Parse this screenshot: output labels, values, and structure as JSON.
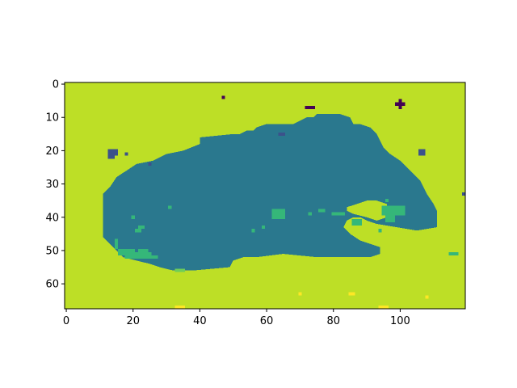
{
  "chart_data": {
    "type": "heatmap",
    "title": "",
    "xlabel": "",
    "ylabel": "",
    "grid": false,
    "legend": "none",
    "image_size": {
      "cols": 120,
      "rows": 68
    },
    "xlim": [
      -0.5,
      119.5
    ],
    "ylim": [
      67.5,
      -0.5
    ],
    "xticks": [
      0,
      20,
      40,
      60,
      80,
      100
    ],
    "yticks": [
      0,
      10,
      20,
      30,
      40,
      50,
      60
    ],
    "colormap": "viridis",
    "colors": {
      "background": "#bddf26",
      "region": "#2a788e",
      "speck_green": "#35b779",
      "speck_blue": "#3b528b",
      "speck_dark": "#440154",
      "speck_yellow": "#fde725",
      "speck_light": "#6ece58"
    },
    "background_value": "#bddf26",
    "region_outline": [
      [
        11,
        33
      ],
      [
        13,
        31
      ],
      [
        15,
        28
      ],
      [
        18,
        26
      ],
      [
        21,
        24
      ],
      [
        26,
        23
      ],
      [
        30,
        21
      ],
      [
        35,
        20
      ],
      [
        40,
        18
      ],
      [
        40,
        16
      ],
      [
        50,
        15
      ],
      [
        52,
        15
      ],
      [
        54,
        14
      ],
      [
        56,
        14
      ],
      [
        57,
        13
      ],
      [
        60,
        12
      ],
      [
        63,
        12
      ],
      [
        68,
        12
      ],
      [
        70,
        11
      ],
      [
        72,
        10
      ],
      [
        74,
        10
      ],
      [
        75,
        9
      ],
      [
        80,
        9
      ],
      [
        82,
        9
      ],
      [
        85,
        10
      ],
      [
        86,
        12
      ],
      [
        88,
        12
      ],
      [
        91,
        13
      ],
      [
        93,
        15
      ],
      [
        94,
        17
      ],
      [
        95,
        19
      ],
      [
        97,
        21
      ],
      [
        100,
        23
      ],
      [
        102,
        25
      ],
      [
        104,
        27
      ],
      [
        106,
        29
      ],
      [
        107,
        31
      ],
      [
        108,
        33
      ],
      [
        110,
        36
      ],
      [
        111,
        38
      ],
      [
        111,
        43
      ],
      [
        105,
        44
      ],
      [
        99,
        43
      ],
      [
        93,
        42
      ],
      [
        90,
        41
      ],
      [
        88,
        40
      ],
      [
        86,
        40
      ],
      [
        84,
        41
      ],
      [
        83,
        43
      ],
      [
        85,
        45
      ],
      [
        88,
        47
      ],
      [
        91,
        48
      ],
      [
        94,
        49
      ],
      [
        94,
        51
      ],
      [
        91,
        52
      ],
      [
        88,
        52
      ],
      [
        83,
        52
      ],
      [
        75,
        52
      ],
      [
        65,
        51
      ],
      [
        57,
        52
      ],
      [
        53,
        52
      ],
      [
        50,
        53
      ],
      [
        49,
        55
      ],
      [
        38,
        56
      ],
      [
        32,
        56
      ],
      [
        28,
        55
      ],
      [
        25,
        54
      ],
      [
        21,
        53
      ],
      [
        17,
        52
      ],
      [
        15,
        50
      ],
      [
        13,
        48
      ],
      [
        11,
        46
      ],
      [
        11,
        40
      ],
      [
        11,
        33
      ]
    ],
    "notch_outline": [
      [
        84,
        37
      ],
      [
        87,
        36
      ],
      [
        90,
        35
      ],
      [
        93,
        35
      ],
      [
        96,
        36
      ],
      [
        96,
        40
      ],
      [
        93,
        41
      ],
      [
        90,
        40
      ],
      [
        86,
        39
      ],
      [
        84,
        38
      ],
      [
        84,
        37
      ]
    ],
    "specks": [
      {
        "x": 47,
        "y": 4,
        "w": 1,
        "h": 1,
        "color": "speck_dark"
      },
      {
        "x": 72,
        "y": 7,
        "w": 3,
        "h": 1,
        "color": "speck_dark"
      },
      {
        "x": 99,
        "y": 6,
        "w": 3,
        "h": 1,
        "color": "speck_dark"
      },
      {
        "x": 100,
        "y": 5,
        "w": 1,
        "h": 3,
        "color": "speck_dark"
      },
      {
        "x": 13,
        "y": 20,
        "w": 3,
        "h": 2,
        "color": "speck_blue"
      },
      {
        "x": 13,
        "y": 22,
        "w": 2,
        "h": 1,
        "color": "speck_blue"
      },
      {
        "x": 18,
        "y": 21,
        "w": 1,
        "h": 1,
        "color": "speck_blue"
      },
      {
        "x": 64,
        "y": 15,
        "w": 2,
        "h": 1,
        "color": "speck_blue"
      },
      {
        "x": 106,
        "y": 20,
        "w": 2,
        "h": 2,
        "color": "speck_blue"
      },
      {
        "x": 119,
        "y": 33,
        "w": 1,
        "h": 1,
        "color": "speck_blue"
      },
      {
        "x": 25,
        "y": 24,
        "w": 1,
        "h": 1,
        "color": "speck_blue"
      },
      {
        "x": 62,
        "y": 38,
        "w": 4,
        "h": 3,
        "color": "speck_green"
      },
      {
        "x": 76,
        "y": 38,
        "w": 2,
        "h": 1,
        "color": "speck_green"
      },
      {
        "x": 73,
        "y": 39,
        "w": 1,
        "h": 1,
        "color": "speck_green"
      },
      {
        "x": 80,
        "y": 39,
        "w": 4,
        "h": 1,
        "color": "speck_green"
      },
      {
        "x": 86,
        "y": 41,
        "w": 3,
        "h": 2,
        "color": "speck_green"
      },
      {
        "x": 95,
        "y": 37,
        "w": 7,
        "h": 3,
        "color": "speck_green"
      },
      {
        "x": 96,
        "y": 40,
        "w": 3,
        "h": 2,
        "color": "speck_green"
      },
      {
        "x": 96,
        "y": 35,
        "w": 1,
        "h": 1,
        "color": "speck_green"
      },
      {
        "x": 20,
        "y": 40,
        "w": 1,
        "h": 1,
        "color": "speck_green"
      },
      {
        "x": 22,
        "y": 43,
        "w": 2,
        "h": 1,
        "color": "speck_green"
      },
      {
        "x": 21,
        "y": 44,
        "w": 2,
        "h": 1,
        "color": "speck_green"
      },
      {
        "x": 31,
        "y": 37,
        "w": 1,
        "h": 1,
        "color": "speck_green"
      },
      {
        "x": 56,
        "y": 44,
        "w": 1,
        "h": 1,
        "color": "speck_green"
      },
      {
        "x": 59,
        "y": 43,
        "w": 1,
        "h": 1,
        "color": "speck_green"
      },
      {
        "x": 15,
        "y": 47,
        "w": 1,
        "h": 3,
        "color": "speck_green"
      },
      {
        "x": 16,
        "y": 50,
        "w": 5,
        "h": 2,
        "color": "speck_green"
      },
      {
        "x": 18,
        "y": 51,
        "w": 8,
        "h": 2,
        "color": "speck_green"
      },
      {
        "x": 22,
        "y": 50,
        "w": 3,
        "h": 1,
        "color": "speck_green"
      },
      {
        "x": 26,
        "y": 52,
        "w": 2,
        "h": 1,
        "color": "speck_green"
      },
      {
        "x": 33,
        "y": 56,
        "w": 3,
        "h": 1,
        "color": "speck_light"
      },
      {
        "x": 115,
        "y": 51,
        "w": 3,
        "h": 1,
        "color": "speck_green"
      },
      {
        "x": 94,
        "y": 44,
        "w": 1,
        "h": 1,
        "color": "speck_green"
      },
      {
        "x": 33,
        "y": 67,
        "w": 3,
        "h": 1,
        "color": "speck_yellow"
      },
      {
        "x": 70,
        "y": 63,
        "w": 1,
        "h": 1,
        "color": "speck_yellow"
      },
      {
        "x": 85,
        "y": 63,
        "w": 2,
        "h": 1,
        "color": "speck_yellow"
      },
      {
        "x": 94,
        "y": 67,
        "w": 3,
        "h": 1,
        "color": "speck_yellow"
      },
      {
        "x": 108,
        "y": 64,
        "w": 1,
        "h": 1,
        "color": "speck_yellow"
      }
    ]
  }
}
